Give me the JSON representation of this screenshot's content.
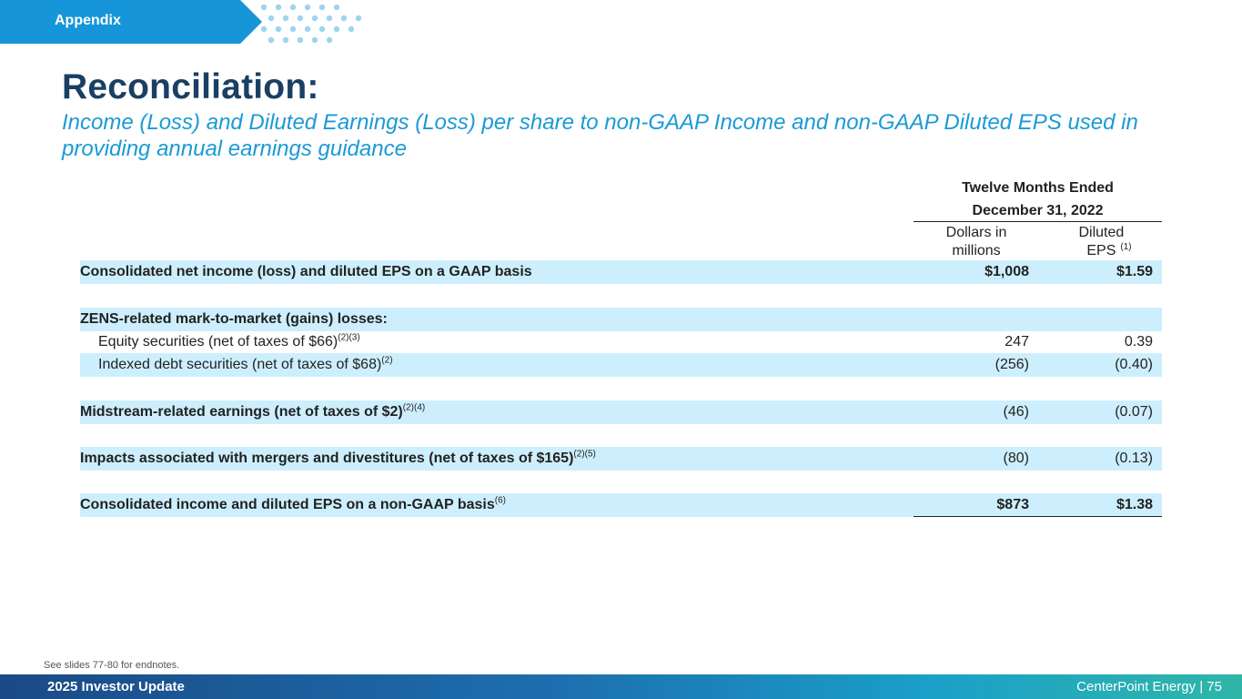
{
  "section_tag": "Appendix",
  "title": "Reconciliation:",
  "subtitle": "Income (Loss) and Diluted Earnings (Loss) per share to non-GAAP Income and non-GAAP Diluted EPS used in providing annual earnings guidance",
  "table": {
    "period_line1": "Twelve Months Ended",
    "period_line2": "December 31, 2022",
    "col_dollars": "Dollars in millions",
    "col_eps": "Diluted EPS",
    "col_eps_note": "(1)",
    "rows": [
      {
        "label": "Consolidated net income (loss) and diluted EPS on a GAAP basis",
        "note": "",
        "dollars": "$1,008",
        "eps": "$1.59"
      },
      {
        "label": "ZENS-related mark-to-market (gains) losses:",
        "note": "",
        "dollars": "",
        "eps": ""
      },
      {
        "label": "Equity securities (net of taxes of $66)",
        "note": "(2)(3)",
        "dollars": "247",
        "eps": "0.39"
      },
      {
        "label": "Indexed debt securities (net of taxes of $68)",
        "note": "(2)",
        "dollars": "(256)",
        "eps": "(0.40)"
      },
      {
        "label": "Midstream-related earnings (net of taxes of $2)",
        "note": "(2)(4)",
        "dollars": "(46)",
        "eps": "(0.07)"
      },
      {
        "label": "Impacts associated with mergers and divestitures (net of taxes of $165)",
        "note": "(2)(5)",
        "dollars": "(80)",
        "eps": "(0.13)"
      },
      {
        "label": "Consolidated income and diluted EPS on a non-GAAP basis",
        "note": "(6)",
        "dollars": "$873",
        "eps": "$1.38"
      }
    ]
  },
  "footnote": "See slides 77-80 for endnotes.",
  "footer": {
    "left": "2025 Investor Update",
    "right": "CenterPoint Energy | 75"
  },
  "colors": {
    "title": "#1a3f63",
    "subtitle": "#1b9ad6",
    "row_shade": "#cdeffd",
    "tag": "#1696d9"
  }
}
